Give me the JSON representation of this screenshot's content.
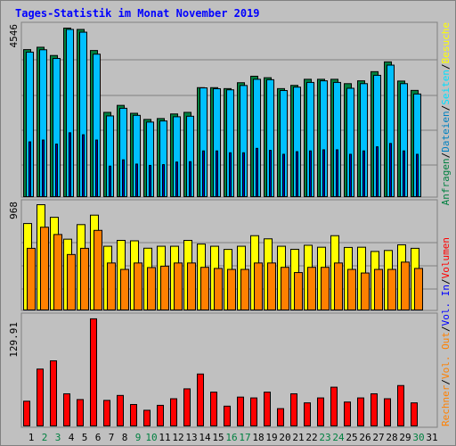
{
  "title": "Tages-Statistik im Monat November 2019",
  "colors": {
    "anfragen": "#008040",
    "dateien": "#00c0ff",
    "seiten": "#00e0ff",
    "besuche": "#ffff00",
    "rechner": "#ff8000",
    "vol_in": "#0000ff",
    "vol_out": "#ff8000",
    "volumen": "#ff0000",
    "weekend_label": "#008040",
    "weekday_label": "#000000",
    "grid": "#808080",
    "panel": "#c0c0c0"
  },
  "chart_data": [
    {
      "type": "bar",
      "panel": "hits",
      "ymax_label": "4546",
      "ylim": [
        0,
        4546
      ],
      "categories": [
        "1",
        "2",
        "3",
        "4",
        "5",
        "6",
        "7",
        "8",
        "9",
        "10",
        "11",
        "12",
        "13",
        "14",
        "15",
        "16",
        "17",
        "18",
        "19",
        "20",
        "21",
        "22",
        "23",
        "24",
        "25",
        "26",
        "27",
        "28",
        "29",
        "30",
        "31"
      ],
      "series": [
        {
          "name": "Anfragen",
          "values": [
            3966,
            4030,
            3807,
            4546,
            4510,
            3942,
            2274,
            2462,
            2249,
            2083,
            2107,
            2231,
            2274,
            2940,
            2940,
            2914,
            3073,
            3248,
            3208,
            2914,
            3001,
            3166,
            3166,
            3166,
            3048,
            3124,
            3371,
            3635,
            3118,
            2866,
            0
          ]
        },
        {
          "name": "Dateien",
          "values": [
            3898,
            3962,
            3727,
            4510,
            4436,
            3843,
            2178,
            2384,
            2193,
            2012,
            2042,
            2155,
            2169,
            2934,
            2911,
            2881,
            2998,
            3166,
            3154,
            2862,
            2954,
            3081,
            3124,
            3081,
            2923,
            3048,
            3273,
            3547,
            3048,
            2769,
            0
          ]
        },
        {
          "name": "Seiten",
          "values": [
            1478,
            1527,
            1419,
            1723,
            1670,
            1527,
            824,
            994,
            879,
            844,
            864,
            934,
            944,
            1234,
            1234,
            1184,
            1184,
            1303,
            1249,
            1143,
            1213,
            1234,
            1264,
            1264,
            1143,
            1234,
            1345,
            1435,
            1234,
            1143,
            0
          ]
        }
      ]
    },
    {
      "type": "bar",
      "panel": "visits",
      "ymax_label": "968",
      "ylim": [
        0,
        968
      ],
      "categories": [
        "1",
        "2",
        "3",
        "4",
        "5",
        "6",
        "7",
        "8",
        "9",
        "10",
        "11",
        "12",
        "13",
        "14",
        "15",
        "16",
        "17",
        "18",
        "19",
        "20",
        "21",
        "22",
        "23",
        "24",
        "25",
        "26",
        "27",
        "28",
        "29",
        "30",
        "31"
      ],
      "series": [
        {
          "name": "Besuche",
          "values": [
            795,
            968,
            852,
            651,
            785,
            872,
            586,
            640,
            636,
            568,
            586,
            586,
            640,
            606,
            586,
            557,
            586,
            683,
            654,
            586,
            558,
            595,
            577,
            683,
            575,
            577,
            538,
            547,
            599,
            567,
            0
          ]
        },
        {
          "name": "Rechner",
          "values": [
            567,
            761,
            694,
            510,
            567,
            732,
            432,
            373,
            432,
            390,
            403,
            432,
            432,
            392,
            382,
            373,
            373,
            432,
            432,
            392,
            344,
            392,
            392,
            432,
            373,
            340,
            373,
            373,
            440,
            382,
            0
          ]
        }
      ]
    },
    {
      "type": "bar",
      "panel": "volume",
      "ymax_label": "129.91",
      "ylim": [
        0,
        129.91
      ],
      "categories": [
        "1",
        "2",
        "3",
        "4",
        "5",
        "6",
        "7",
        "8",
        "9",
        "10",
        "11",
        "12",
        "13",
        "14",
        "15",
        "16",
        "17",
        "18",
        "19",
        "20",
        "21",
        "22",
        "23",
        "24",
        "25",
        "26",
        "27",
        "28",
        "29",
        "30",
        "31"
      ],
      "series": [
        {
          "name": "Volumen",
          "values": [
            30,
            69,
            79,
            39,
            32,
            130,
            31,
            37,
            26,
            19,
            25,
            33,
            45,
            63,
            41,
            24,
            35,
            34,
            41,
            21,
            39,
            28,
            34,
            47,
            29,
            34,
            39,
            33,
            49,
            28,
            0
          ]
        }
      ]
    }
  ],
  "x_labels": [
    {
      "t": "1",
      "weekend": false
    },
    {
      "t": "2",
      "weekend": true
    },
    {
      "t": "3",
      "weekend": true
    },
    {
      "t": "4",
      "weekend": false
    },
    {
      "t": "5",
      "weekend": false
    },
    {
      "t": "6",
      "weekend": false
    },
    {
      "t": "7",
      "weekend": false
    },
    {
      "t": "8",
      "weekend": false
    },
    {
      "t": "9",
      "weekend": true
    },
    {
      "t": "10",
      "weekend": true
    },
    {
      "t": "11",
      "weekend": false
    },
    {
      "t": "12",
      "weekend": false
    },
    {
      "t": "13",
      "weekend": false
    },
    {
      "t": "14",
      "weekend": false
    },
    {
      "t": "15",
      "weekend": false
    },
    {
      "t": "16",
      "weekend": true
    },
    {
      "t": "17",
      "weekend": true
    },
    {
      "t": "18",
      "weekend": false
    },
    {
      "t": "19",
      "weekend": false
    },
    {
      "t": "20",
      "weekend": false
    },
    {
      "t": "21",
      "weekend": false
    },
    {
      "t": "22",
      "weekend": false
    },
    {
      "t": "23",
      "weekend": true
    },
    {
      "t": "24",
      "weekend": true
    },
    {
      "t": "25",
      "weekend": false
    },
    {
      "t": "26",
      "weekend": false
    },
    {
      "t": "27",
      "weekend": false
    },
    {
      "t": "28",
      "weekend": false
    },
    {
      "t": "29",
      "weekend": false
    },
    {
      "t": "30",
      "weekend": true
    },
    {
      "t": "31",
      "weekend": false
    }
  ],
  "legend_top": [
    {
      "t": "Anfragen",
      "c": "#008040"
    },
    {
      "t": "/",
      "c": "#000000"
    },
    {
      "t": "Dateien",
      "c": "#0080c0"
    },
    {
      "t": "/",
      "c": "#000000"
    },
    {
      "t": "Seiten",
      "c": "#00e0ff"
    },
    {
      "t": "/",
      "c": "#000000"
    },
    {
      "t": "Besuche",
      "c": "#ffff00"
    }
  ],
  "legend_bottom": [
    {
      "t": "Rechner",
      "c": "#ff8000"
    },
    {
      "t": "/",
      "c": "#000000"
    },
    {
      "t": "Vol. Out",
      "c": "#ff8000"
    },
    {
      "t": "/",
      "c": "#000000"
    },
    {
      "t": "Vol. In",
      "c": "#0000ff"
    },
    {
      "t": "/",
      "c": "#000000"
    },
    {
      "t": "Volumen",
      "c": "#ff0000"
    }
  ]
}
